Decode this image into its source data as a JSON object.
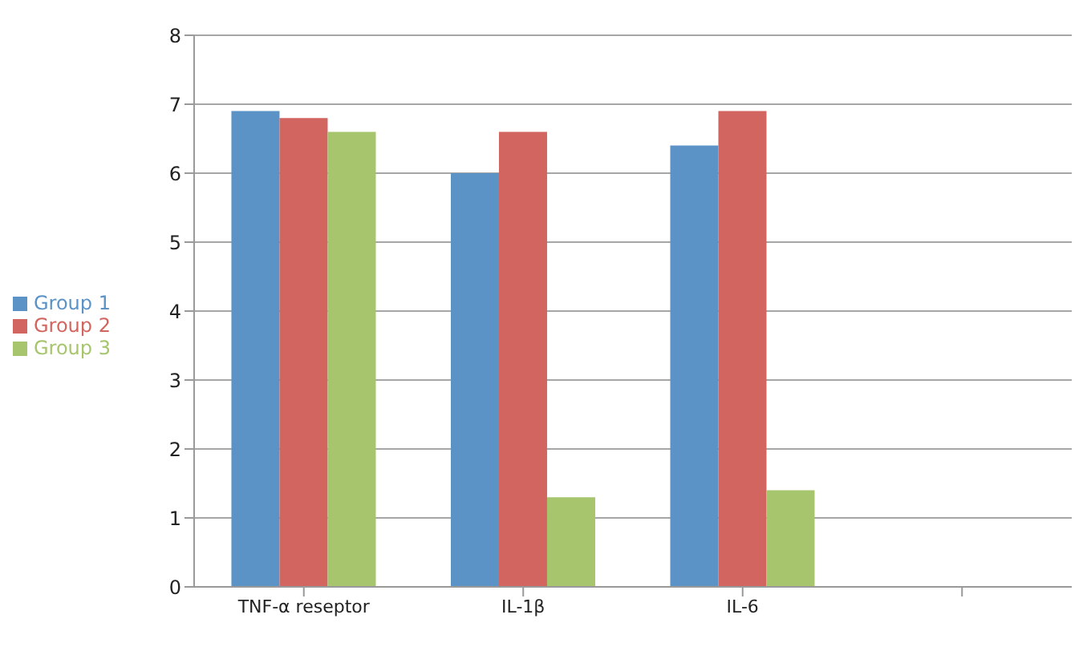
{
  "chart_data": {
    "type": "bar",
    "categories": [
      "TNF-α reseptor",
      "IL-1β",
      "IL-6",
      null
    ],
    "series": [
      {
        "name": "Group 1",
        "color": "#5b93c7",
        "values": [
          6.9,
          6.0,
          6.4,
          null
        ]
      },
      {
        "name": "Group 2",
        "color": "#d2655f",
        "values": [
          6.8,
          6.6,
          6.9,
          null
        ]
      },
      {
        "name": "Group 3",
        "color": "#a6c56d",
        "values": [
          6.6,
          1.3,
          1.4,
          null
        ]
      }
    ],
    "ylim": [
      0,
      8
    ],
    "yticks": [
      0,
      1,
      2,
      3,
      4,
      5,
      6,
      7,
      8
    ],
    "grid": "y",
    "legend": "left"
  }
}
